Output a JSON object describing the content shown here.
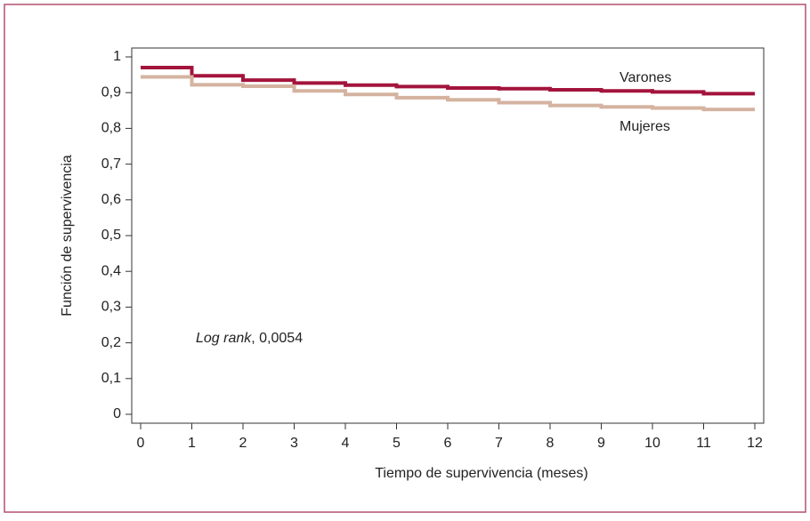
{
  "chart_data": {
    "type": "step",
    "x": [
      0,
      1,
      2,
      3,
      4,
      5,
      6,
      7,
      8,
      9,
      10,
      11
    ],
    "series": [
      {
        "name": "Varones",
        "color": "#a3143c",
        "values": [
          0.97,
          0.947,
          0.935,
          0.927,
          0.921,
          0.917,
          0.913,
          0.911,
          0.908,
          0.905,
          0.902,
          0.897
        ]
      },
      {
        "name": "Mujeres",
        "color": "#d4b3a0",
        "values": [
          0.944,
          0.922,
          0.918,
          0.905,
          0.895,
          0.886,
          0.88,
          0.872,
          0.864,
          0.86,
          0.857,
          0.853
        ]
      }
    ],
    "x_label": "Tiempo de supervivencia (meses)",
    "y_label": "Función de supervivencia",
    "annotation": {
      "italic": "Log rank",
      "text": ", 0,0054"
    },
    "xlim": [
      0,
      12
    ],
    "xticks": [
      0,
      1,
      2,
      3,
      4,
      5,
      6,
      7,
      8,
      9,
      10,
      11,
      12
    ],
    "ylim": [
      0,
      1
    ],
    "yticks": [
      0,
      {
        "value": 0.1,
        "label": "0,1"
      },
      {
        "value": 0.2,
        "label": "0,2"
      },
      {
        "value": 0.3,
        "label": "0,3"
      },
      {
        "value": 0.4,
        "label": "0,4"
      },
      {
        "value": 0.5,
        "label": "0,5"
      },
      {
        "value": 0.6,
        "label": "0,6"
      },
      {
        "value": 0.7,
        "label": "0,7"
      },
      {
        "value": 0.8,
        "label": "0,8"
      },
      {
        "value": 0.9,
        "label": "0,9"
      },
      1
    ]
  }
}
